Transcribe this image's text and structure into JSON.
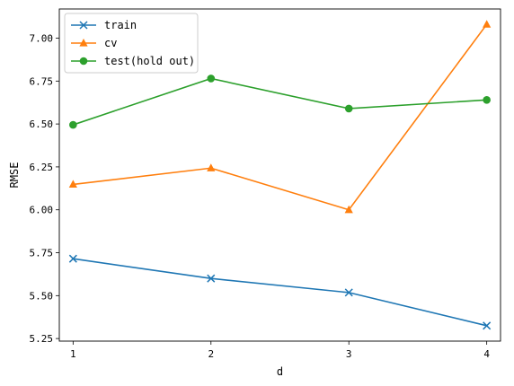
{
  "chart_data": {
    "type": "line",
    "x": [
      1,
      2,
      3,
      4
    ],
    "xlabel": "d",
    "ylabel": "RMSE",
    "xlim": [
      0.9,
      4.1
    ],
    "ylim": [
      5.235,
      7.17
    ],
    "xticks": [
      1,
      2,
      3,
      4
    ],
    "xtick_labels": [
      "1",
      "2",
      "3",
      "4"
    ],
    "yticks": [
      5.25,
      5.5,
      5.75,
      6.0,
      6.25,
      6.5,
      6.75,
      7.0
    ],
    "ytick_labels": [
      "5.25",
      "5.50",
      "5.75",
      "6.00",
      "6.25",
      "6.50",
      "6.75",
      "7.00"
    ],
    "grid": false,
    "legend_position": "top-left",
    "series": [
      {
        "name": "train",
        "values": [
          5.715,
          5.6,
          5.518,
          5.325
        ],
        "color": "#1f77b4",
        "marker": "x"
      },
      {
        "name": "cv",
        "values": [
          6.148,
          6.243,
          6.0,
          7.08
        ],
        "color": "#ff7f0e",
        "marker": "triangle"
      },
      {
        "name": "test(hold out)",
        "values": [
          6.495,
          6.765,
          6.59,
          6.64
        ],
        "color": "#2ca02c",
        "marker": "circle"
      }
    ]
  }
}
